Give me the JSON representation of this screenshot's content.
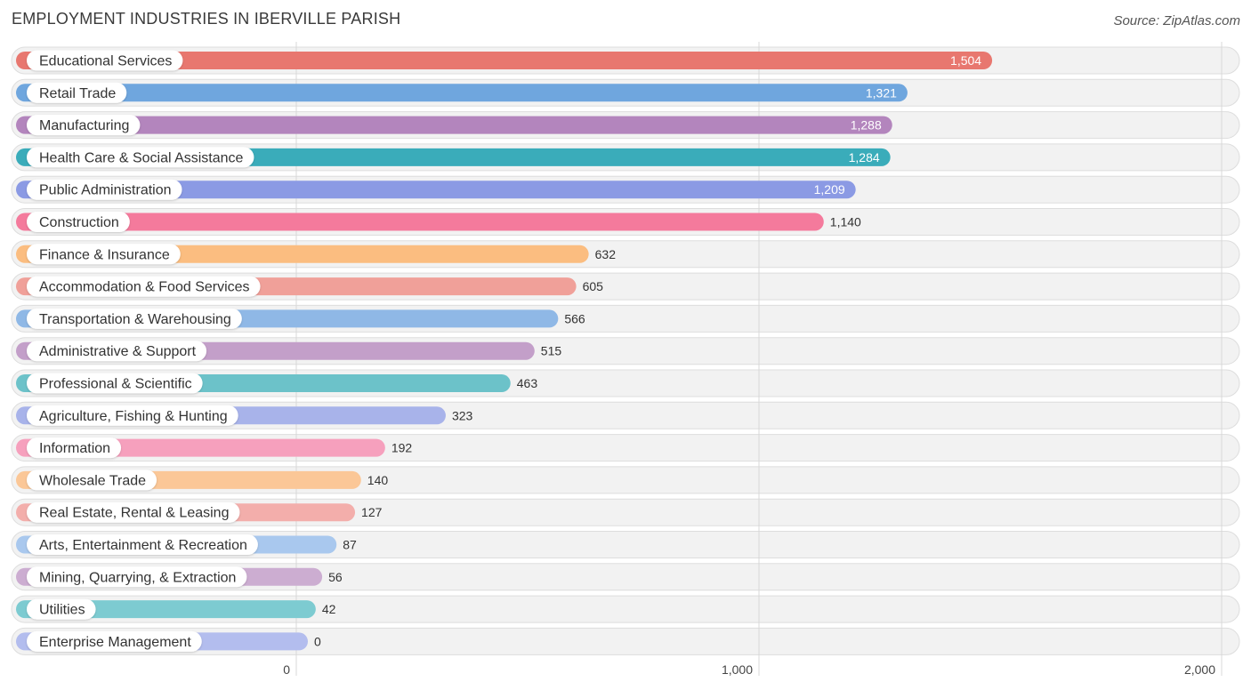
{
  "header": {
    "title": "EMPLOYMENT INDUSTRIES IN IBERVILLE PARISH",
    "source": "Source: ZipAtlas.com"
  },
  "chart_data": {
    "type": "bar",
    "orientation": "horizontal",
    "title": "EMPLOYMENT INDUSTRIES IN IBERVILLE PARISH",
    "xlabel": "",
    "ylabel": "",
    "xlim": [
      0,
      2000
    ],
    "ticks": [
      0,
      1000,
      2000
    ],
    "tick_labels": [
      "0",
      "1,000",
      "2,000"
    ],
    "grid": true,
    "categories": [
      "Educational Services",
      "Retail Trade",
      "Manufacturing",
      "Health Care & Social Assistance",
      "Public Administration",
      "Construction",
      "Finance & Insurance",
      "Accommodation & Food Services",
      "Transportation & Warehousing",
      "Administrative & Support",
      "Professional & Scientific",
      "Agriculture, Fishing & Hunting",
      "Information",
      "Wholesale Trade",
      "Real Estate, Rental & Leasing",
      "Arts, Entertainment & Recreation",
      "Mining, Quarrying, & Extraction",
      "Utilities",
      "Enterprise Management"
    ],
    "values": [
      1504,
      1321,
      1288,
      1284,
      1209,
      1140,
      632,
      605,
      566,
      515,
      463,
      323,
      192,
      140,
      127,
      87,
      56,
      42,
      0
    ],
    "value_labels": [
      "1,504",
      "1,321",
      "1,288",
      "1,284",
      "1,209",
      "1,140",
      "632",
      "605",
      "566",
      "515",
      "463",
      "323",
      "192",
      "140",
      "127",
      "87",
      "56",
      "42",
      "0"
    ],
    "colors": [
      "#e8776f",
      "#6fa6de",
      "#b385bd",
      "#3aacba",
      "#8b9ae4",
      "#f47a9c",
      "#fbbd80",
      "#f0a099",
      "#8fb8e6",
      "#c39fc9",
      "#6cc2c9",
      "#a8b3ea",
      "#f6a0bd",
      "#fbc797",
      "#f3aeab",
      "#a9c8ee",
      "#ccadd1",
      "#7dcbd1",
      "#b3bdee"
    ]
  }
}
